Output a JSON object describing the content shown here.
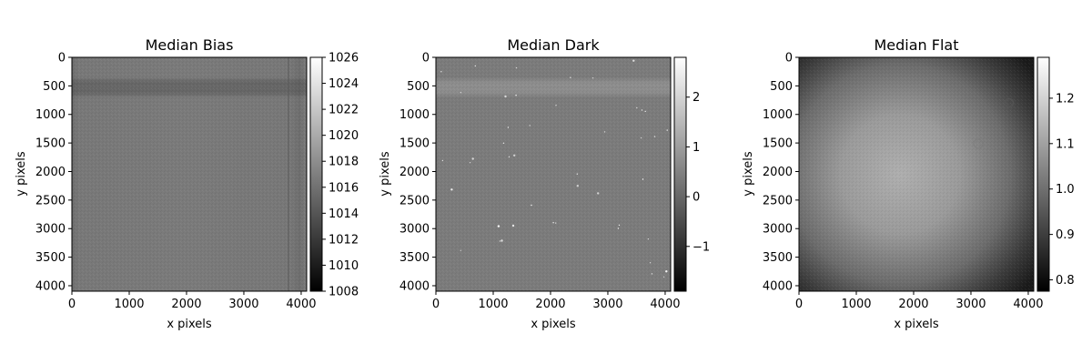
{
  "chart_data": [
    {
      "type": "heatmap",
      "title": "Median Bias",
      "xlabel": "x pixels",
      "ylabel": "y pixels",
      "xlim": [
        0,
        4096
      ],
      "ylim": [
        4096,
        0
      ],
      "xticks": [
        0,
        1000,
        2000,
        3000,
        4000
      ],
      "yticks": [
        0,
        500,
        1000,
        1500,
        2000,
        2500,
        3000,
        3500,
        4000
      ],
      "colormap": "gray",
      "colorbar": {
        "range": [
          1008,
          1026
        ],
        "ticks": [
          1008,
          1010,
          1012,
          1014,
          1016,
          1018,
          1020,
          1022,
          1024,
          1026
        ],
        "tick_labels": [
          "1008",
          "1010",
          "1012",
          "1014",
          "1016",
          "1018",
          "1020",
          "1022",
          "1024",
          "1026"
        ]
      }
    },
    {
      "type": "heatmap",
      "title": "Median Dark",
      "xlabel": "x pixels",
      "ylabel": "y pixels",
      "xlim": [
        0,
        4096
      ],
      "ylim": [
        4096,
        0
      ],
      "xticks": [
        0,
        1000,
        2000,
        3000,
        4000
      ],
      "yticks": [
        0,
        500,
        1000,
        1500,
        2000,
        2500,
        3000,
        3500,
        4000
      ],
      "colormap": "gray",
      "colorbar": {
        "range": [
          -1.9,
          2.8
        ],
        "ticks": [
          -1,
          0,
          1,
          2
        ],
        "tick_labels": [
          "−1",
          "0",
          "1",
          "2"
        ]
      }
    },
    {
      "type": "heatmap",
      "title": "Median Flat",
      "xlabel": "x pixels",
      "ylabel": "y pixels",
      "xlim": [
        0,
        4096
      ],
      "ylim": [
        4096,
        0
      ],
      "xticks": [
        0,
        1000,
        2000,
        3000,
        4000
      ],
      "yticks": [
        0,
        500,
        1000,
        1500,
        2000,
        2500,
        3000,
        3500,
        4000
      ],
      "colormap": "gray",
      "colorbar": {
        "range": [
          0.775,
          1.29
        ],
        "ticks": [
          0.8,
          0.9,
          1.0,
          1.1,
          1.2
        ],
        "tick_labels": [
          "0.8",
          "0.9",
          "1.0",
          "1.1",
          "1.2"
        ]
      }
    }
  ]
}
